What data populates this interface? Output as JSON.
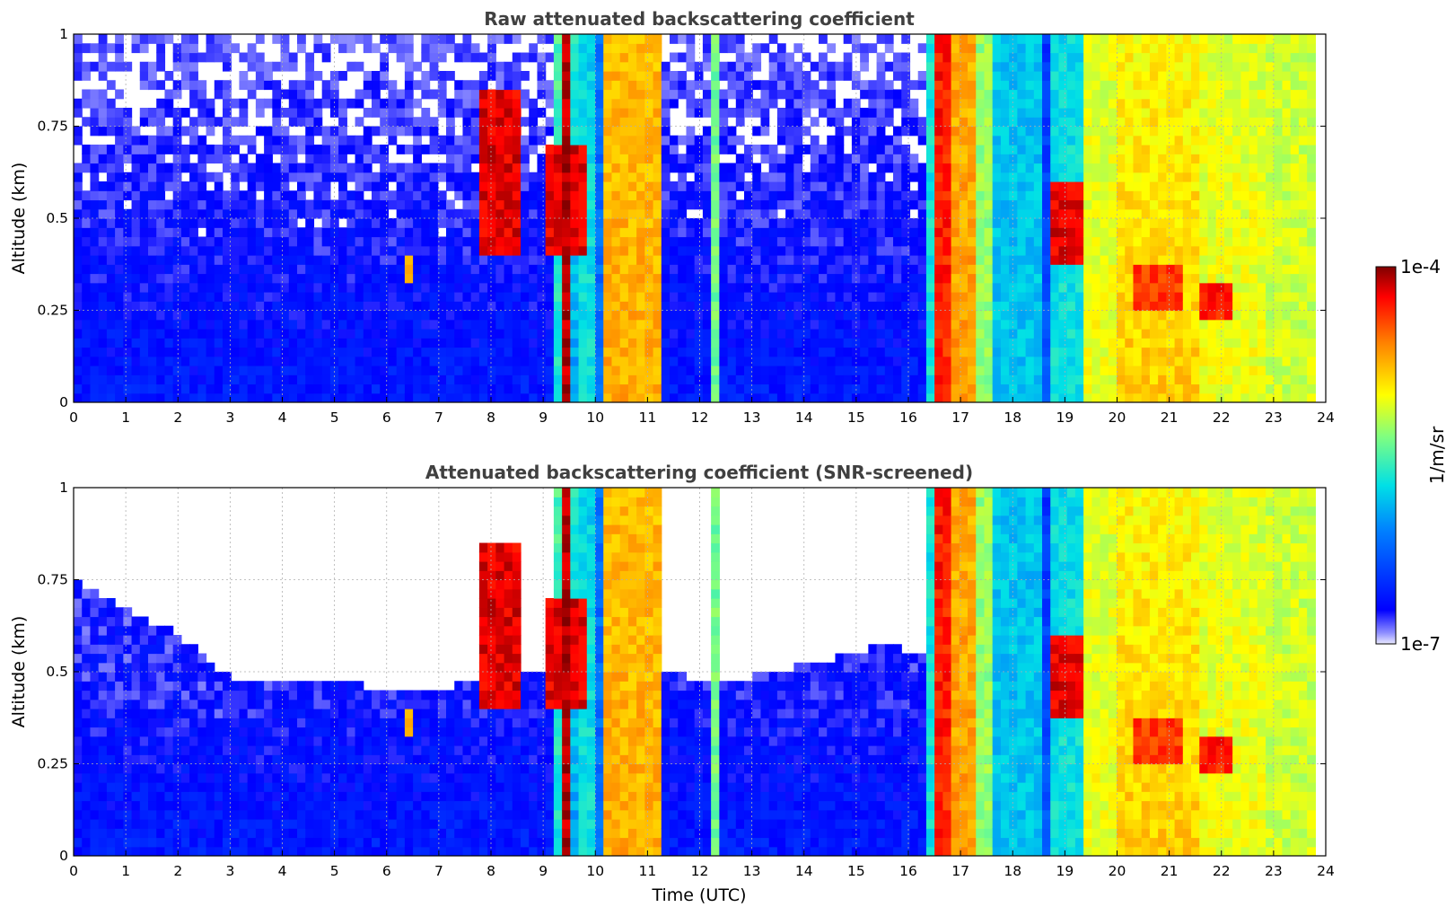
{
  "chart_data": [
    {
      "type": "heatmap",
      "title": "Raw attenuated backscattering coefficient",
      "xlabel": "",
      "ylabel": "Altitude (km)",
      "xlim": [
        0,
        24
      ],
      "ylim": [
        0,
        1
      ],
      "x_ticks": [
        "0",
        "1",
        "2",
        "3",
        "4",
        "5",
        "6",
        "7",
        "8",
        "9",
        "10",
        "11",
        "12",
        "13",
        "14",
        "15",
        "16",
        "17",
        "18",
        "19",
        "20",
        "21",
        "22",
        "23",
        "24"
      ],
      "y_ticks": [
        "0",
        "0.25",
        "0.5",
        "0.75",
        "1"
      ],
      "grid": true,
      "screened": false,
      "data_end_hour": 23.8,
      "columns_log10": [
        {
          "x0": 0.0,
          "x1": 9.2,
          "base": -6.6,
          "top": -6.9
        },
        {
          "x0": 9.2,
          "x1": 9.45,
          "base": -5.7,
          "top": -5.5
        },
        {
          "x0": 9.45,
          "x1": 9.6,
          "base": -6.0,
          "top": -5.6
        },
        {
          "x0": 9.6,
          "x1": 9.7,
          "base": -6.3,
          "top": -6.4
        },
        {
          "x0": 9.7,
          "x1": 10.0,
          "base": -5.7,
          "top": -5.8
        },
        {
          "x0": 10.0,
          "x1": 10.2,
          "base": -6.2,
          "top": -6.2
        },
        {
          "x0": 10.2,
          "x1": 11.2,
          "base": -4.75,
          "top": -4.8
        },
        {
          "x0": 11.2,
          "x1": 12.2,
          "base": -6.6,
          "top": -6.9
        },
        {
          "x0": 12.2,
          "x1": 12.45,
          "base": -6.0,
          "top": -6.3
        },
        {
          "x0": 12.45,
          "x1": 16.3,
          "base": -6.6,
          "top": -6.9
        },
        {
          "x0": 16.3,
          "x1": 16.55,
          "base": -5.7,
          "top": -5.7
        },
        {
          "x0": 16.55,
          "x1": 16.85,
          "base": -4.35,
          "top": -4.3
        },
        {
          "x0": 16.85,
          "x1": 17.25,
          "base": -4.7,
          "top": -4.75
        },
        {
          "x0": 17.25,
          "x1": 17.55,
          "base": -5.3,
          "top": -5.3
        },
        {
          "x0": 17.55,
          "x1": 18.5,
          "base": -5.85,
          "top": -5.85
        },
        {
          "x0": 18.5,
          "x1": 18.75,
          "base": -6.3,
          "top": -6.5
        },
        {
          "x0": 18.75,
          "x1": 19.4,
          "base": -5.7,
          "top": -5.75
        },
        {
          "x0": 19.4,
          "x1": 20.0,
          "base": -5.05,
          "top": -5.1
        },
        {
          "x0": 20.0,
          "x1": 21.6,
          "base": -4.85,
          "top": -5.0
        },
        {
          "x0": 21.6,
          "x1": 22.9,
          "base": -5.05,
          "top": -5.1
        },
        {
          "x0": 22.9,
          "x1": 23.8,
          "base": -5.15,
          "top": -5.15
        }
      ],
      "features_log10": [
        {
          "x0": 9.3,
          "x1": 9.5,
          "y0": 0.0,
          "y1": 1.0,
          "value": -4.1
        },
        {
          "x0": 7.8,
          "x1": 8.6,
          "y0": 0.4,
          "y1": 0.85,
          "value": -4.2
        },
        {
          "x0": 9.0,
          "x1": 9.8,
          "y0": 0.4,
          "y1": 0.7,
          "value": -4.2
        },
        {
          "x0": 6.3,
          "x1": 6.5,
          "y0": 0.33,
          "y1": 0.4,
          "value": -4.8
        },
        {
          "x0": 12.25,
          "x1": 12.4,
          "y0": 0.0,
          "y1": 1.0,
          "value": -5.4
        },
        {
          "x0": 18.7,
          "x1": 19.3,
          "y0": 0.38,
          "y1": 0.6,
          "value": -4.2
        },
        {
          "x0": 20.3,
          "x1": 21.3,
          "y0": 0.25,
          "y1": 0.38,
          "value": -4.4
        },
        {
          "x0": 21.6,
          "x1": 22.2,
          "y0": 0.22,
          "y1": 0.32,
          "value": -4.3
        }
      ]
    },
    {
      "type": "heatmap",
      "title": "Attenuated backscattering coefficient (SNR-screened)",
      "xlabel": "Time (UTC)",
      "ylabel": "Altitude (km)",
      "xlim": [
        0,
        24
      ],
      "ylim": [
        0,
        1
      ],
      "x_ticks": [
        "0",
        "1",
        "2",
        "3",
        "4",
        "5",
        "6",
        "7",
        "8",
        "9",
        "10",
        "11",
        "12",
        "13",
        "14",
        "15",
        "16",
        "17",
        "18",
        "19",
        "20",
        "21",
        "22",
        "23",
        "24"
      ],
      "y_ticks": [
        "0",
        "0.25",
        "0.5",
        "0.75",
        "1"
      ],
      "grid": true,
      "screened": true,
      "screen_top_altitude_km": [
        {
          "t": 0,
          "z": 0.75
        },
        {
          "t": 2,
          "z": 0.6
        },
        {
          "t": 3,
          "z": 0.48
        },
        {
          "t": 4,
          "z": 0.47
        },
        {
          "t": 6,
          "z": 0.46
        },
        {
          "t": 7,
          "z": 0.45
        },
        {
          "t": 8,
          "z": 0.5
        },
        {
          "t": 9,
          "z": 0.5
        },
        {
          "t": 11.2,
          "z": 0.5
        },
        {
          "t": 12.5,
          "z": 0.47
        },
        {
          "t": 14,
          "z": 0.52
        },
        {
          "t": 15.5,
          "z": 0.57
        },
        {
          "t": 16.3,
          "z": 0.55
        }
      ],
      "tinted_region_log10": {
        "x0": 0,
        "x1": 4,
        "value": -6.9
      }
    }
  ],
  "colorbar": {
    "label": "1/m/sr",
    "max_label": "1e-4",
    "min_label": "1e-7",
    "max_log10": -4,
    "min_log10": -7,
    "colormap": "jet"
  }
}
